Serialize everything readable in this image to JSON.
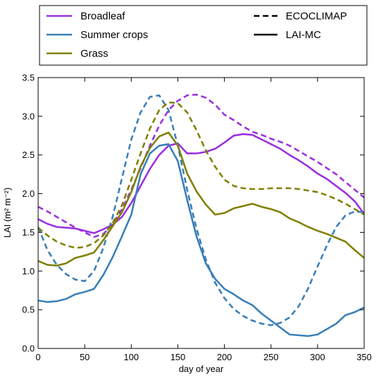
{
  "chart_data": {
    "type": "line",
    "xlabel": "day of year",
    "ylabel": "LAI (m² m⁻²)",
    "xlim": [
      0,
      350
    ],
    "ylim": [
      0.0,
      3.5
    ],
    "xticks": [
      0,
      50,
      100,
      150,
      200,
      250,
      300,
      350
    ],
    "yticks": [
      0.0,
      0.5,
      1.0,
      1.5,
      2.0,
      2.5,
      3.0,
      3.5
    ],
    "xtick_labels": [
      "0",
      "50",
      "100",
      "150",
      "200",
      "250",
      "300",
      "350"
    ],
    "ytick_labels": [
      "0.0",
      "0.5",
      "1.0",
      "1.5",
      "2.0",
      "2.5",
      "3.0",
      "3.5"
    ],
    "grid": false,
    "legend_placement": "above-plot",
    "legend_vegetation": [
      {
        "label": "Broadleaf",
        "color": "#9b30e0"
      },
      {
        "label": "Summer crops",
        "color": "#3a7fb8"
      },
      {
        "label": "Grass",
        "color": "#808000"
      }
    ],
    "legend_source": [
      {
        "label": "ECOCLIMAP",
        "style": "dashed"
      },
      {
        "label": "LAI-MC",
        "style": "solid"
      }
    ],
    "series": [
      {
        "vegetation": "Broadleaf",
        "source": "ECOCLIMAP",
        "color": "#9b30e0",
        "style": "dashed",
        "x": [
          0,
          10,
          20,
          30,
          40,
          50,
          60,
          70,
          80,
          90,
          100,
          110,
          120,
          130,
          140,
          150,
          160,
          170,
          180,
          190,
          200,
          210,
          220,
          230,
          240,
          250,
          260,
          270,
          280,
          290,
          300,
          310,
          320,
          330,
          340,
          350
        ],
        "y": [
          1.83,
          1.77,
          1.7,
          1.63,
          1.56,
          1.5,
          1.44,
          1.48,
          1.6,
          1.8,
          2.05,
          2.33,
          2.62,
          2.88,
          3.08,
          3.2,
          3.27,
          3.28,
          3.24,
          3.15,
          3.02,
          2.95,
          2.87,
          2.8,
          2.76,
          2.71,
          2.67,
          2.62,
          2.55,
          2.48,
          2.41,
          2.33,
          2.25,
          2.15,
          2.05,
          1.95
        ]
      },
      {
        "vegetation": "Broadleaf",
        "source": "LAI-MC",
        "color": "#9b30e0",
        "style": "solid",
        "x": [
          0,
          10,
          20,
          30,
          40,
          50,
          60,
          70,
          80,
          90,
          100,
          110,
          120,
          130,
          140,
          150,
          160,
          170,
          180,
          190,
          200,
          210,
          220,
          230,
          240,
          250,
          260,
          270,
          280,
          290,
          300,
          310,
          320,
          330,
          340,
          350
        ],
        "y": [
          1.67,
          1.61,
          1.57,
          1.56,
          1.55,
          1.52,
          1.49,
          1.54,
          1.6,
          1.7,
          1.88,
          2.1,
          2.32,
          2.5,
          2.62,
          2.65,
          2.52,
          2.52,
          2.54,
          2.58,
          2.66,
          2.75,
          2.77,
          2.76,
          2.7,
          2.64,
          2.58,
          2.5,
          2.43,
          2.35,
          2.26,
          2.19,
          2.1,
          2.01,
          1.9,
          1.74
        ]
      },
      {
        "vegetation": "Summer crops",
        "source": "ECOCLIMAP",
        "color": "#3a7fb8",
        "style": "dashed",
        "x": [
          0,
          10,
          20,
          30,
          40,
          50,
          60,
          70,
          80,
          90,
          100,
          110,
          120,
          130,
          140,
          150,
          160,
          170,
          180,
          190,
          200,
          210,
          220,
          230,
          240,
          250,
          260,
          270,
          280,
          290,
          300,
          310,
          320,
          330,
          340,
          350
        ],
        "y": [
          1.57,
          1.27,
          1.08,
          0.96,
          0.89,
          0.87,
          1.0,
          1.3,
          1.7,
          2.2,
          2.7,
          3.05,
          3.25,
          3.27,
          3.08,
          2.62,
          2.05,
          1.55,
          1.15,
          0.85,
          0.65,
          0.51,
          0.42,
          0.36,
          0.32,
          0.3,
          0.33,
          0.4,
          0.55,
          0.78,
          1.06,
          1.33,
          1.57,
          1.72,
          1.77,
          1.76
        ]
      },
      {
        "vegetation": "Summer crops",
        "source": "LAI-MC",
        "color": "#3a7fb8",
        "style": "solid",
        "x": [
          0,
          10,
          20,
          30,
          40,
          50,
          60,
          70,
          80,
          90,
          100,
          110,
          120,
          130,
          140,
          150,
          160,
          170,
          180,
          190,
          200,
          210,
          220,
          230,
          240,
          250,
          260,
          270,
          280,
          290,
          300,
          310,
          320,
          330,
          340,
          350
        ],
        "y": [
          0.62,
          0.6,
          0.61,
          0.64,
          0.7,
          0.73,
          0.77,
          0.95,
          1.18,
          1.45,
          1.73,
          2.25,
          2.52,
          2.62,
          2.64,
          2.42,
          1.92,
          1.45,
          1.1,
          0.9,
          0.77,
          0.7,
          0.62,
          0.56,
          0.45,
          0.36,
          0.27,
          0.18,
          0.17,
          0.16,
          0.18,
          0.25,
          0.32,
          0.43,
          0.47,
          0.53
        ]
      },
      {
        "vegetation": "Grass",
        "source": "ECOCLIMAP",
        "color": "#808000",
        "style": "dashed",
        "x": [
          0,
          10,
          20,
          30,
          40,
          50,
          60,
          70,
          80,
          90,
          100,
          110,
          120,
          130,
          140,
          150,
          160,
          170,
          180,
          190,
          200,
          210,
          220,
          230,
          240,
          250,
          260,
          270,
          280,
          290,
          300,
          310,
          320,
          330,
          340,
          350
        ],
        "y": [
          1.56,
          1.46,
          1.38,
          1.33,
          1.3,
          1.31,
          1.36,
          1.46,
          1.62,
          1.85,
          2.18,
          2.52,
          2.84,
          3.08,
          3.18,
          3.17,
          3.05,
          2.82,
          2.56,
          2.35,
          2.18,
          2.1,
          2.07,
          2.06,
          2.06,
          2.07,
          2.07,
          2.07,
          2.06,
          2.04,
          2.02,
          1.98,
          1.93,
          1.87,
          1.8,
          1.73
        ]
      },
      {
        "vegetation": "Grass",
        "source": "LAI-MC",
        "color": "#808000",
        "style": "solid",
        "x": [
          0,
          10,
          20,
          30,
          40,
          50,
          60,
          70,
          80,
          90,
          100,
          110,
          120,
          130,
          140,
          150,
          160,
          170,
          180,
          190,
          200,
          210,
          220,
          230,
          240,
          250,
          260,
          270,
          280,
          290,
          300,
          310,
          320,
          330,
          340,
          350
        ],
        "y": [
          1.13,
          1.08,
          1.07,
          1.1,
          1.17,
          1.2,
          1.24,
          1.4,
          1.58,
          1.76,
          2.02,
          2.35,
          2.59,
          2.74,
          2.79,
          2.62,
          2.26,
          2.03,
          1.86,
          1.73,
          1.75,
          1.81,
          1.84,
          1.87,
          1.83,
          1.8,
          1.76,
          1.68,
          1.63,
          1.57,
          1.52,
          1.48,
          1.43,
          1.38,
          1.27,
          1.17
        ]
      }
    ]
  }
}
